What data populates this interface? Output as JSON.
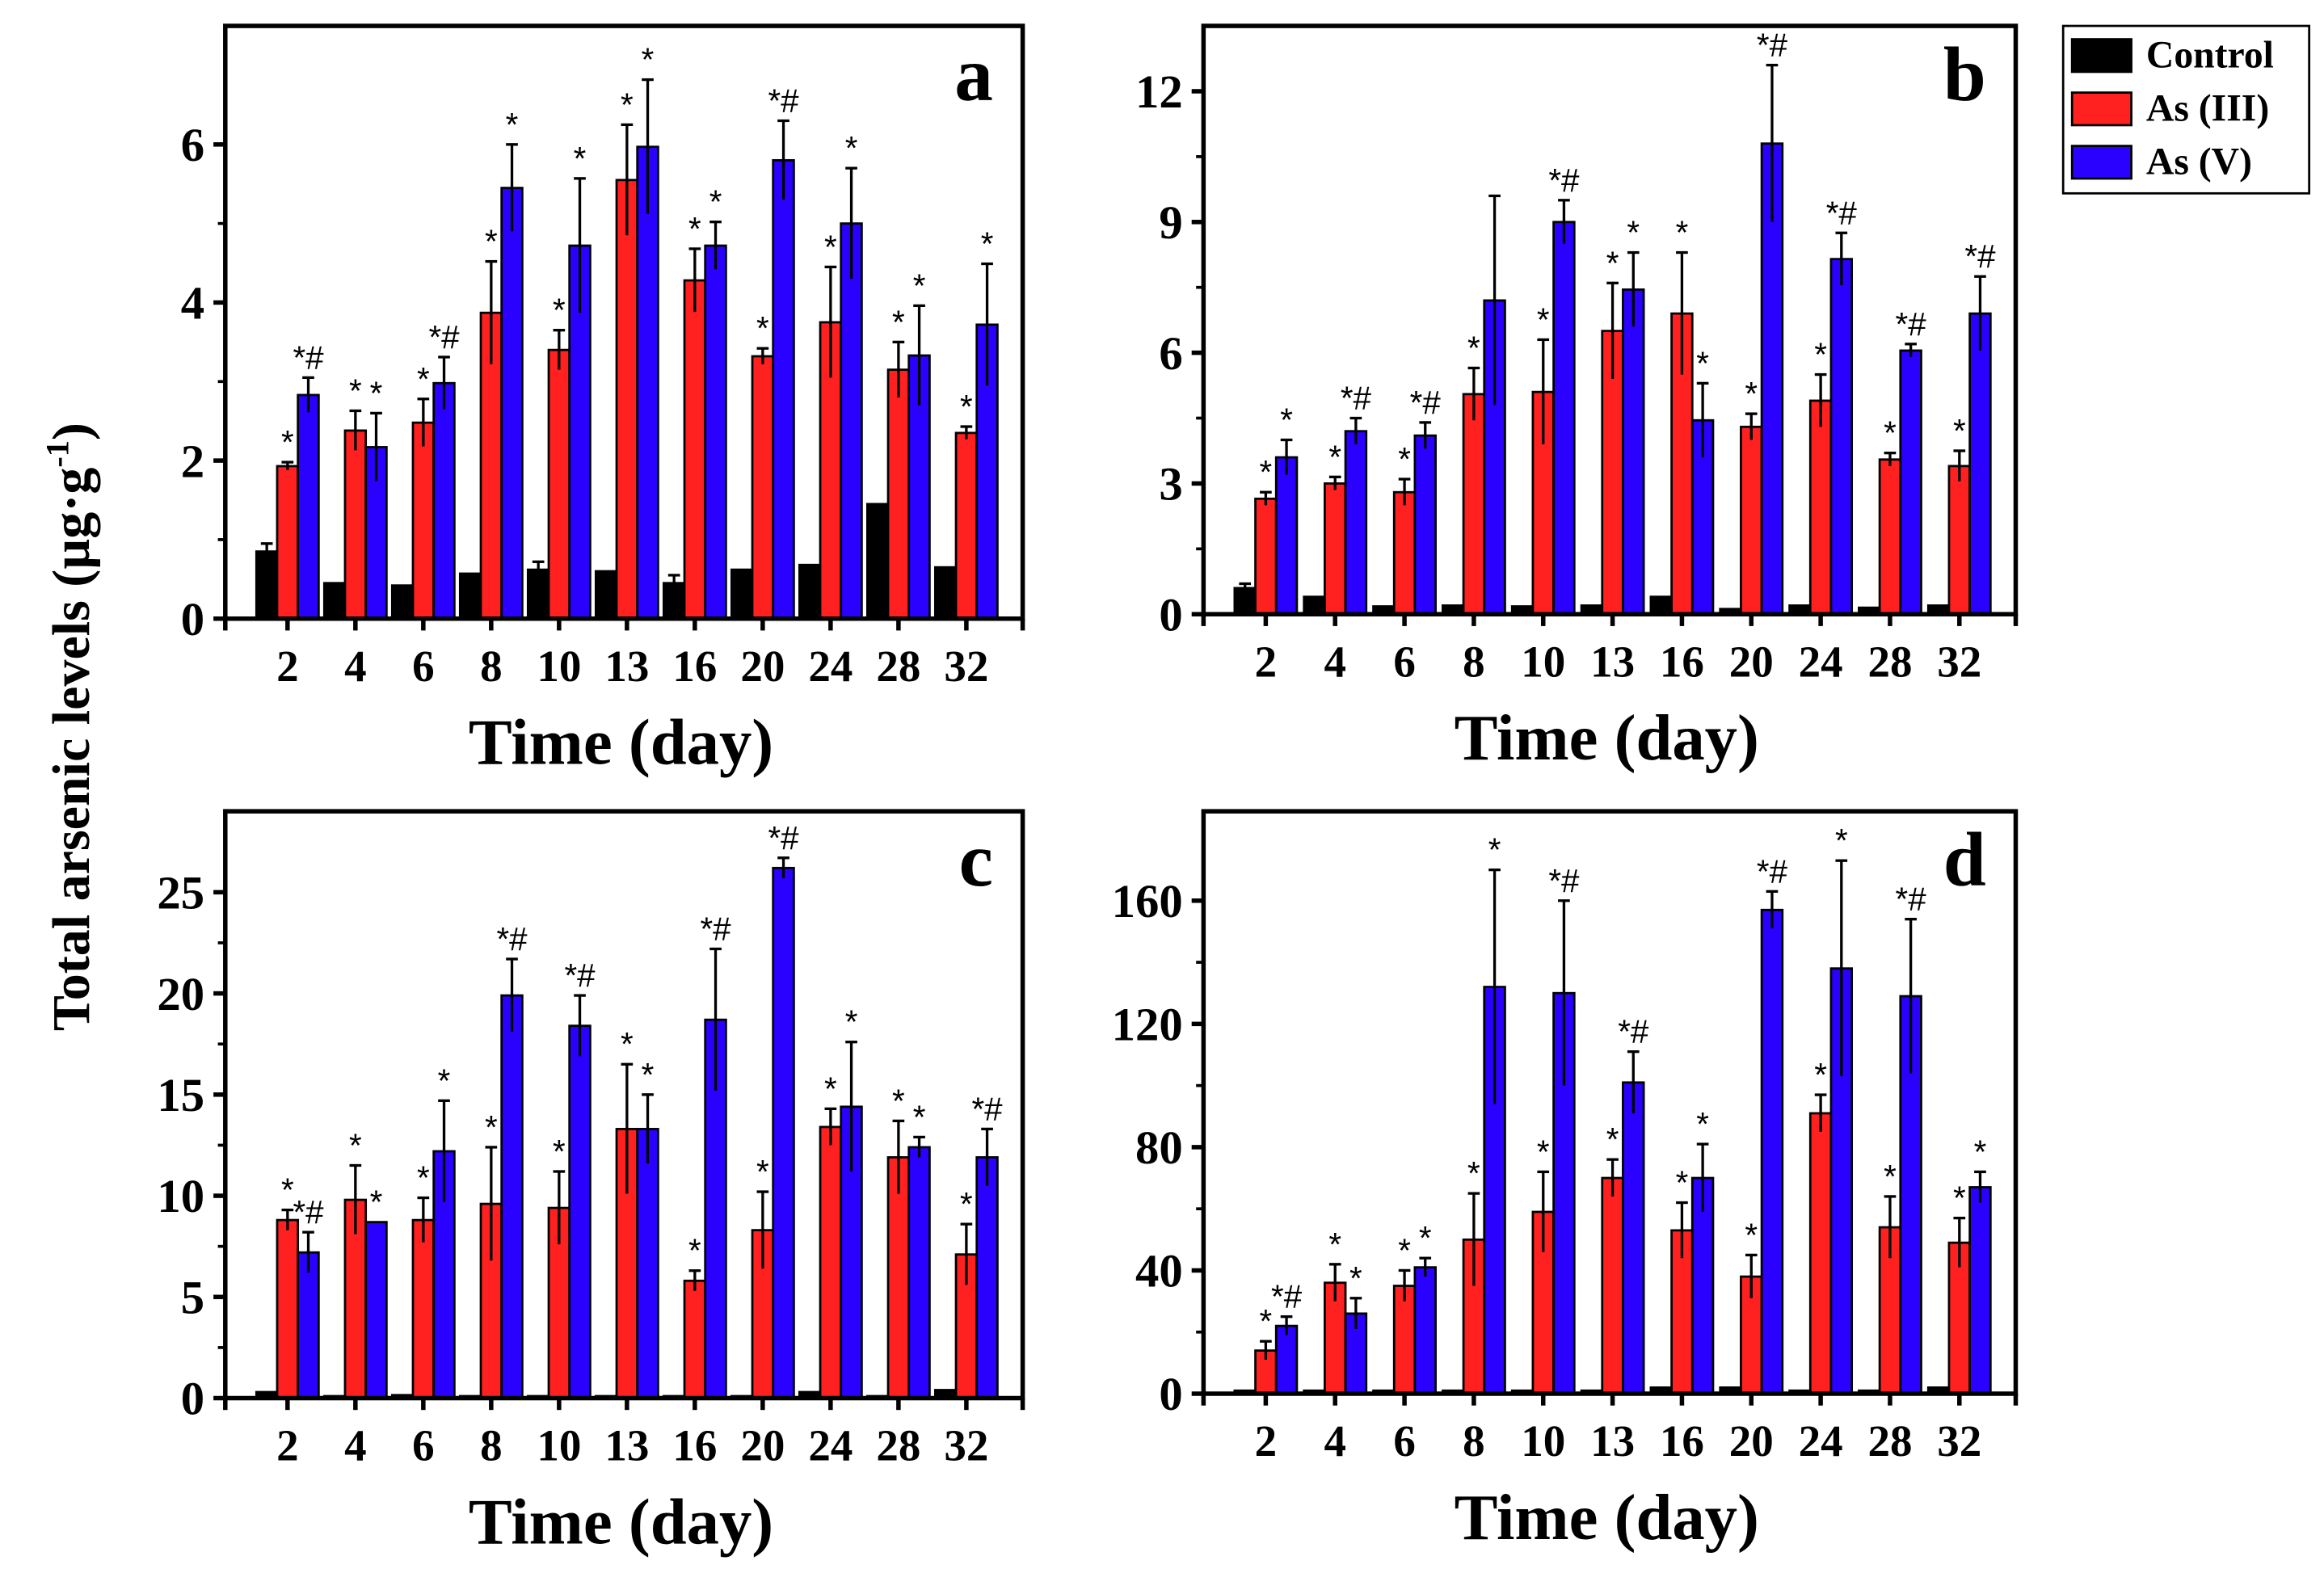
{
  "chart_data": {
    "type": "bar",
    "ylabel": "Total arsenic levels (µg·g",
    "ylabel_sup": "-1",
    "ylabel_close": ")",
    "xlabel": "Time (day)",
    "categories": [
      "2",
      "4",
      "6",
      "8",
      "10",
      "13",
      "16",
      "20",
      "24",
      "28",
      "32"
    ],
    "legend": {
      "placement": "top-right",
      "entries": [
        {
          "name": "Control",
          "color": "#000000"
        },
        {
          "name": "As (III)",
          "color": "#ff2020"
        },
        {
          "name": "As (V)",
          "color": "#2a00ff"
        }
      ]
    },
    "panels": [
      {
        "label": "a",
        "ylim": [
          0,
          7.5
        ],
        "yticks": [
          0,
          2,
          4,
          6
        ],
        "series": [
          {
            "name": "Control",
            "values": [
              0.85,
              0.45,
              0.42,
              0.57,
              0.62,
              0.6,
              0.45,
              0.62,
              0.68,
              1.45,
              0.65
            ],
            "errors": [
              0.1,
              0,
              0,
              0,
              0.1,
              0,
              0.1,
              0,
              0,
              0,
              0
            ],
            "annotations": [
              "",
              "",
              "",
              "",
              "",
              "",
              "",
              "",
              "",
              "",
              ""
            ]
          },
          {
            "name": "As (III)",
            "values": [
              1.93,
              2.38,
              2.48,
              3.87,
              3.4,
              5.55,
              4.28,
              3.32,
              3.75,
              3.15,
              2.35
            ],
            "errors": [
              0.05,
              0.25,
              0.3,
              0.65,
              0.25,
              0.7,
              0.4,
              0.1,
              0.7,
              0.35,
              0.08
            ],
            "annotations": [
              "*",
              "*",
              "*",
              "*",
              "*",
              "*",
              "*",
              "*",
              "*",
              "*",
              "*"
            ]
          },
          {
            "name": "As (V)",
            "values": [
              2.83,
              2.17,
              2.98,
              5.45,
              4.72,
              5.97,
              4.72,
              5.8,
              5.0,
              3.33,
              3.72
            ],
            "errors": [
              0.22,
              0.43,
              0.33,
              0.55,
              0.85,
              0.85,
              0.3,
              0.5,
              0.7,
              0.63,
              0.77
            ],
            "annotations": [
              "*#",
              "*",
              "*#",
              "*",
              "*",
              "*",
              "*",
              "*#",
              "*",
              "*",
              "*"
            ]
          }
        ]
      },
      {
        "label": "b",
        "ylim": [
          0,
          13.5
        ],
        "yticks": [
          0,
          3,
          6,
          9,
          12
        ],
        "series": [
          {
            "name": "Control",
            "values": [
              0.6,
              0.4,
              0.18,
              0.2,
              0.18,
              0.2,
              0.4,
              0.12,
              0.2,
              0.15,
              0.2
            ],
            "errors": [
              0.1,
              0,
              0,
              0,
              0,
              0,
              0,
              0,
              0,
              0,
              0
            ],
            "annotations": [
              "",
              "",
              "",
              "",
              "",
              "",
              "",
              "",
              "",
              "",
              ""
            ]
          },
          {
            "name": "As (III)",
            "values": [
              2.65,
              3.0,
              2.8,
              5.05,
              5.1,
              6.5,
              6.9,
              4.3,
              4.9,
              3.55,
              3.4
            ],
            "errors": [
              0.15,
              0.15,
              0.3,
              0.6,
              1.2,
              1.1,
              1.4,
              0.3,
              0.6,
              0.15,
              0.35
            ],
            "annotations": [
              "*",
              "*",
              "*",
              "*",
              "*",
              "*",
              "*",
              "*",
              "*",
              "*",
              "*"
            ]
          },
          {
            "name": "As (V)",
            "values": [
              3.6,
              4.2,
              4.1,
              7.2,
              9.0,
              7.45,
              4.45,
              10.8,
              8.15,
              6.05,
              6.9
            ],
            "errors": [
              0.4,
              0.3,
              0.3,
              2.4,
              0.5,
              0.85,
              0.85,
              1.8,
              0.6,
              0.15,
              0.85
            ],
            "annotations": [
              "*",
              "*#",
              "*#",
              "",
              "*#",
              "*",
              "*",
              "*#",
              "*#",
              "*#",
              "*#"
            ]
          }
        ]
      },
      {
        "label": "c",
        "ylim": [
          0,
          29
        ],
        "yticks": [
          0,
          5,
          10,
          15,
          20,
          25
        ],
        "series": [
          {
            "name": "Control",
            "values": [
              0.3,
              0.1,
              0.15,
              0.1,
              0.1,
              0.1,
              0.1,
              0.1,
              0.3,
              0.1,
              0.4
            ],
            "errors": [
              0,
              0,
              0,
              0,
              0,
              0,
              0,
              0,
              0,
              0,
              0
            ],
            "annotations": [
              "",
              "",
              "",
              "",
              "",
              "",
              "",
              "",
              "",
              "",
              ""
            ]
          },
          {
            "name": "As (III)",
            "values": [
              8.8,
              9.8,
              8.8,
              9.6,
              9.4,
              13.3,
              5.8,
              8.3,
              13.4,
              11.9,
              7.1
            ],
            "errors": [
              0.5,
              1.7,
              1.1,
              2.8,
              1.8,
              3.2,
              0.5,
              1.9,
              0.9,
              1.8,
              1.5
            ],
            "annotations": [
              "*",
              "*",
              "*",
              "*",
              "*",
              "*",
              "*",
              "*",
              "*",
              "*",
              "*"
            ]
          },
          {
            "name": "As (V)",
            "values": [
              7.2,
              8.7,
              12.2,
              19.9,
              18.4,
              13.3,
              18.7,
              26.2,
              14.4,
              12.4,
              11.9
            ],
            "errors": [
              1.0,
              0,
              2.5,
              1.8,
              1.5,
              1.7,
              3.5,
              0.5,
              3.2,
              0.5,
              1.4
            ],
            "annotations": [
              "*#",
              "*",
              "*",
              "*#",
              "*#",
              "*",
              "*#",
              "*#",
              "*",
              "*",
              "*#"
            ]
          }
        ]
      },
      {
        "label": "d",
        "ylim": [
          0,
          189
        ],
        "yticks": [
          0,
          40,
          80,
          120,
          160
        ],
        "series": [
          {
            "name": "Control",
            "values": [
              1,
              1,
              1,
              1,
              1,
              1,
              2,
              2,
              1,
              1,
              2
            ],
            "errors": [
              0,
              0,
              0,
              0,
              0,
              0,
              0,
              0,
              0,
              0,
              0
            ],
            "annotations": [
              "",
              "",
              "",
              "",
              "",
              "",
              "",
              "",
              "",
              "",
              ""
            ]
          },
          {
            "name": "As (III)",
            "values": [
              14,
              36,
              35,
              50,
              59,
              70,
              53,
              38,
              91,
              54,
              49
            ],
            "errors": [
              3,
              6,
              5,
              15,
              13,
              6,
              9,
              7,
              6,
              10,
              8
            ],
            "annotations": [
              "*",
              "*",
              "*",
              "*",
              "*",
              "*",
              "*",
              "*",
              "*",
              "*",
              "*"
            ]
          },
          {
            "name": "As (V)",
            "values": [
              22,
              26,
              41,
              132,
              130,
              101,
              70,
              157,
              138,
              129,
              67
            ],
            "errors": [
              3,
              5,
              3,
              38,
              30,
              10,
              11,
              6,
              35,
              25,
              5
            ],
            "annotations": [
              "*#",
              "*",
              "*",
              "*",
              "*#",
              "*#",
              "*",
              "*#",
              "*",
              "*#",
              "*"
            ]
          }
        ]
      }
    ]
  }
}
